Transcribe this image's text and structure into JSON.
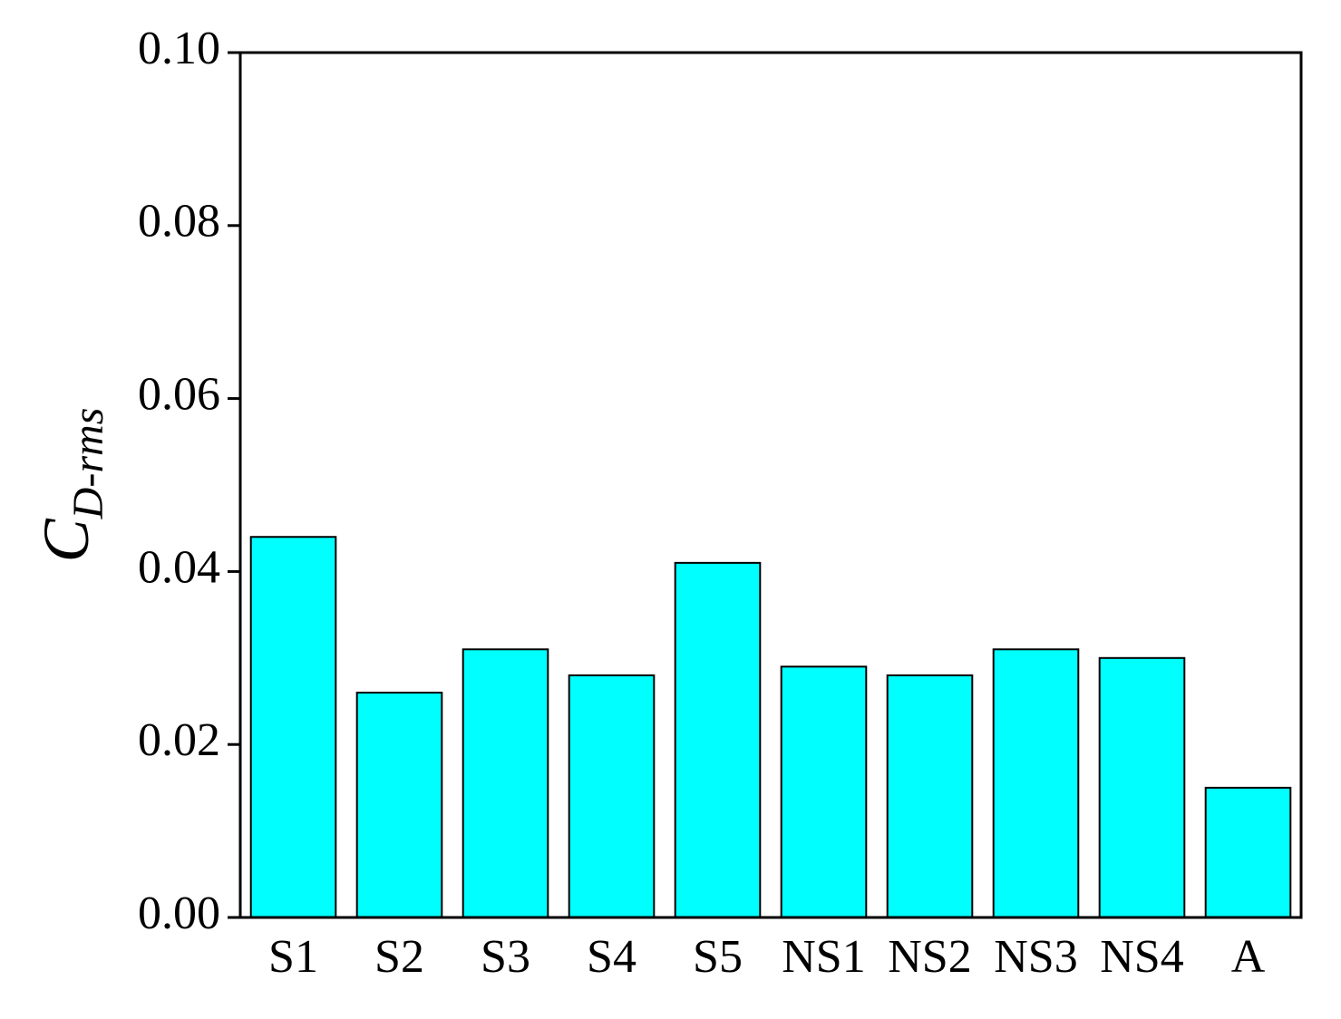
{
  "chart_data": {
    "type": "bar",
    "ylabel": "C",
    "ylabel_subscript": "D-rms",
    "categories": [
      "S1",
      "S2",
      "S3",
      "S4",
      "S5",
      "NS1",
      "NS2",
      "NS3",
      "NS4",
      "A"
    ],
    "values": [
      0.044,
      0.026,
      0.031,
      0.028,
      0.041,
      0.029,
      0.028,
      0.031,
      0.03,
      0.015
    ],
    "color": "#00ffff",
    "ylim": [
      0,
      0.1
    ],
    "yticks": [
      {
        "value": 0,
        "label": "0.00"
      },
      0.02,
      0.04,
      0.06,
      0.08,
      {
        "value": 0.1,
        "label": "0.10"
      }
    ],
    "grid": false
  }
}
